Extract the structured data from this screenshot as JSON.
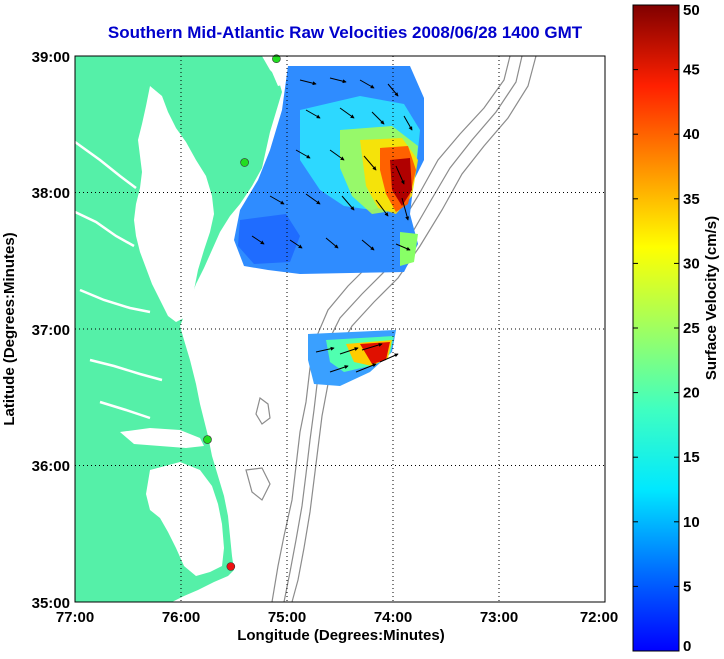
{
  "title": "Southern Mid-Atlantic Raw Velocities 2008/06/28 1400 GMT",
  "x_axis": {
    "label": "Longitude (Degrees:Minutes)",
    "ticks": [
      "77:00",
      "76:00",
      "75:00",
      "74:00",
      "73:00",
      "72:00"
    ]
  },
  "y_axis": {
    "label": "Latitude (Degrees:Minutes)",
    "ticks": [
      "39:00",
      "38:00",
      "37:00",
      "36:00",
      "35:00"
    ]
  },
  "colorbar": {
    "label": "Surface Velocity (cm/s)",
    "ticks": [
      "50",
      "45",
      "40",
      "35",
      "30",
      "25",
      "20",
      "15",
      "10",
      "5",
      "0"
    ],
    "min": 0,
    "max": 50,
    "colormap": "jet"
  },
  "colors": {
    "land": "#55f0a8",
    "ocean": "#ffffff",
    "title": "#0000cc",
    "bathymetry": "#8c8c8c",
    "station_green": "#22dd22",
    "station_red": "#ee1111",
    "grid": "#000000"
  },
  "map": {
    "lon_range": [
      -77,
      -72
    ],
    "lat_range": [
      35,
      39
    ],
    "grid": "dotted"
  },
  "chart_data": {
    "type": "heatmap",
    "title": "Southern Mid-Atlantic Raw Velocities 2008/06/28 1400 GMT",
    "xlabel": "Longitude (Degrees:Minutes)",
    "ylabel": "Latitude (Degrees:Minutes)",
    "xlim": [
      -77,
      -72
    ],
    "ylim": [
      35,
      39
    ],
    "value_label": "Surface Velocity (cm/s)",
    "value_range": [
      0,
      50
    ],
    "stations": [
      {
        "lon": -75.1,
        "lat": 38.98,
        "color": "green"
      },
      {
        "lon": -75.4,
        "lat": 38.22,
        "color": "green"
      },
      {
        "lon": -75.75,
        "lat": 36.19,
        "color": "green"
      },
      {
        "lon": -75.53,
        "lat": 35.26,
        "color": "red"
      }
    ]
  }
}
